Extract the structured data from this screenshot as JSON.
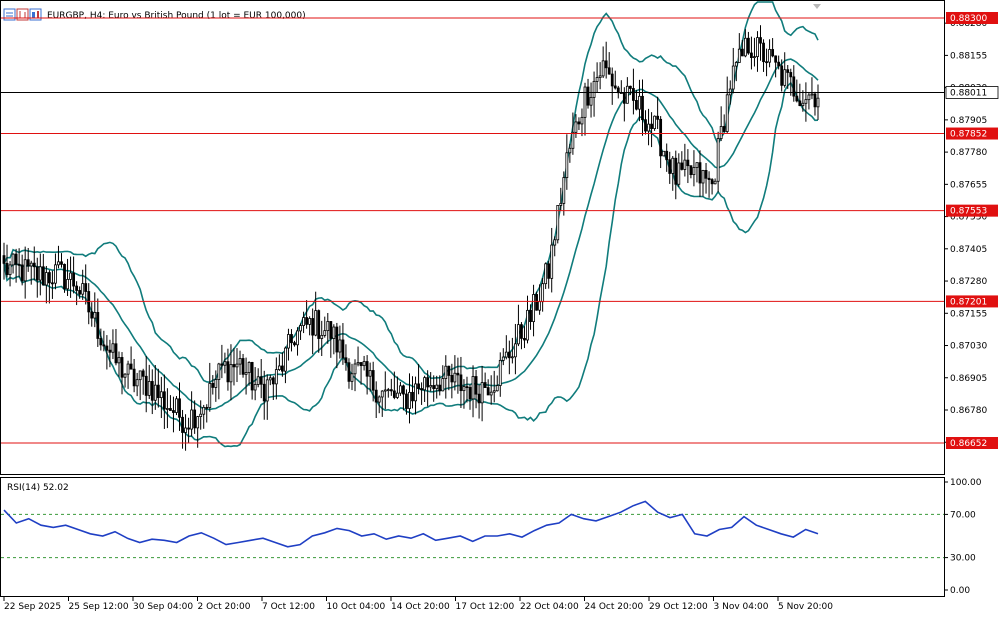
{
  "window": {
    "title": "EURGBP, H4:  Euro vs British Pound (1 lot = EUR 100,000)",
    "icon_names": [
      "chart-window-icon",
      "bars-icon",
      "candles-icon"
    ]
  },
  "colors": {
    "background": "#ffffff",
    "grid_frame": "#000000",
    "bollinger": "#107c7c",
    "level_line": "#e01010",
    "level_tag": "#e01010",
    "current_price_line": "#000000",
    "rsi_line": "#1f3fc4",
    "rsi_levels": "#3a9a3a",
    "candle": "#000000"
  },
  "chart_data": [
    {
      "type": "candlestick",
      "symbol": "EURGBP",
      "timeframe": "H4",
      "ylim": [
        0.8655,
        0.8832
      ],
      "y_ticks": [
        "0.88280",
        "0.88155",
        "0.88030",
        "0.87905",
        "0.87780",
        "0.87655",
        "0.87530",
        "0.87405",
        "0.87280",
        "0.87155",
        "0.87030",
        "0.86905",
        "0.86780",
        "0.86655"
      ],
      "y_tick_values": [
        0.8828,
        0.88155,
        0.8803,
        0.87905,
        0.8778,
        0.87655,
        0.8753,
        0.87405,
        0.8728,
        0.87155,
        0.8703,
        0.86905,
        0.8678,
        0.86655
      ],
      "x_labels": [
        "22 Sep 2025",
        "25 Sep 12:00",
        "30 Sep 04:00",
        "2 Oct 20:00",
        "7 Oct 12:00",
        "10 Oct 04:00",
        "14 Oct 20:00",
        "17 Oct 12:00",
        "22 Oct 04:00",
        "24 Oct 20:00",
        "29 Oct 12:00",
        "3 Nov 04:00",
        "5 Nov 20:00"
      ],
      "horizontal_levels": [
        {
          "value": 0.883,
          "label": "0.88300"
        },
        {
          "value": 0.87852,
          "label": "0.87852"
        },
        {
          "value": 0.87553,
          "label": "0.87553"
        },
        {
          "value": 0.87201,
          "label": "0.87201"
        },
        {
          "value": 0.86652,
          "label": "0.86652"
        }
      ],
      "current_price": {
        "value": 0.88011,
        "label": "0.88011"
      },
      "close_path": [
        [
          0,
          0.8733
        ],
        [
          6,
          0.8732
        ],
        [
          12,
          0.873
        ],
        [
          18,
          0.8731
        ],
        [
          24,
          0.8727
        ],
        [
          30,
          0.8712
        ],
        [
          36,
          0.8698
        ],
        [
          42,
          0.869
        ],
        [
          48,
          0.8688
        ],
        [
          54,
          0.868
        ],
        [
          60,
          0.8674
        ],
        [
          66,
          0.868
        ],
        [
          72,
          0.8694
        ],
        [
          78,
          0.8696
        ],
        [
          84,
          0.8686
        ],
        [
          90,
          0.869
        ],
        [
          96,
          0.8707
        ],
        [
          102,
          0.8712
        ],
        [
          108,
          0.8708
        ],
        [
          114,
          0.8695
        ],
        [
          120,
          0.869
        ],
        [
          126,
          0.8684
        ],
        [
          132,
          0.8682
        ],
        [
          138,
          0.8688
        ],
        [
          144,
          0.869
        ],
        [
          150,
          0.8688
        ],
        [
          156,
          0.8686
        ],
        [
          162,
          0.869
        ],
        [
          168,
          0.8702
        ],
        [
          174,
          0.8714
        ],
        [
          180,
          0.8732
        ],
        [
          186,
          0.8775
        ],
        [
          192,
          0.88
        ],
        [
          198,
          0.8811
        ],
        [
          204,
          0.88
        ],
        [
          210,
          0.8795
        ],
        [
          216,
          0.8785
        ],
        [
          222,
          0.8768
        ],
        [
          228,
          0.877
        ],
        [
          234,
          0.8765
        ],
        [
          240,
          0.8805
        ],
        [
          246,
          0.882
        ],
        [
          252,
          0.8815
        ],
        [
          258,
          0.8806
        ],
        [
          264,
          0.88
        ],
        [
          269,
          0.8801
        ]
      ],
      "candle_count": 270,
      "indicators": [
        "Bollinger Bands"
      ]
    },
    {
      "type": "line",
      "title": "RSI(14) 52.02",
      "ylim": [
        0,
        100
      ],
      "y_ticks": [
        "100.00",
        "70.00",
        "30.00",
        "0.00"
      ],
      "y_tick_values": [
        100,
        70,
        30,
        0
      ],
      "levels": [
        70,
        30
      ],
      "series": [
        {
          "name": "RSI(14)",
          "values": [
            74,
            62,
            66,
            60,
            58,
            60,
            56,
            52,
            50,
            54,
            48,
            44,
            47,
            46,
            44,
            50,
            53,
            48,
            42,
            44,
            46,
            48,
            44,
            40,
            42,
            50,
            53,
            57,
            55,
            50,
            52,
            47,
            50,
            48,
            52,
            46,
            48,
            50,
            45,
            50,
            50,
            52,
            49,
            55,
            60,
            62,
            70,
            66,
            64,
            68,
            72,
            78,
            82,
            72,
            67,
            70,
            52,
            50,
            56,
            58,
            68,
            60,
            56,
            52,
            49,
            56,
            52
          ]
        }
      ]
    }
  ]
}
